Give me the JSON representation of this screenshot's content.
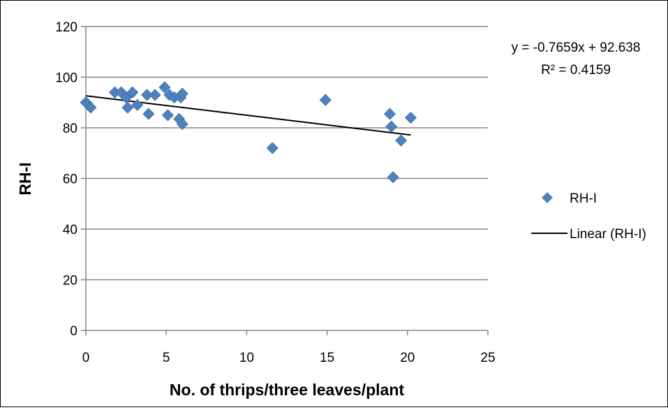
{
  "chart_data": {
    "type": "scatter",
    "xlabel": "No. of thrips/three leaves/plant",
    "ylabel": "RH-I",
    "xlim": [
      0,
      25
    ],
    "ylim": [
      0,
      120
    ],
    "xticks": [
      0,
      5,
      10,
      15,
      20,
      25
    ],
    "yticks": [
      0,
      20,
      40,
      60,
      80,
      100,
      120
    ],
    "grid": "horizontal",
    "legend_position": "right",
    "series": [
      {
        "name": "RH-I",
        "marker": "diamond",
        "color": "#4F81BD",
        "points": [
          {
            "x": 0.0,
            "y": 90
          },
          {
            "x": 0.1,
            "y": 89.5
          },
          {
            "x": 0.3,
            "y": 88
          },
          {
            "x": 1.8,
            "y": 94
          },
          {
            "x": 2.2,
            "y": 94
          },
          {
            "x": 2.5,
            "y": 92
          },
          {
            "x": 2.6,
            "y": 88
          },
          {
            "x": 2.9,
            "y": 94
          },
          {
            "x": 3.2,
            "y": 89
          },
          {
            "x": 3.8,
            "y": 93
          },
          {
            "x": 3.9,
            "y": 85.5
          },
          {
            "x": 4.3,
            "y": 93
          },
          {
            "x": 4.9,
            "y": 96
          },
          {
            "x": 5.1,
            "y": 85
          },
          {
            "x": 5.2,
            "y": 93
          },
          {
            "x": 5.5,
            "y": 92
          },
          {
            "x": 5.8,
            "y": 83.5
          },
          {
            "x": 5.9,
            "y": 92
          },
          {
            "x": 6.0,
            "y": 93.5
          },
          {
            "x": 6.0,
            "y": 81.5
          },
          {
            "x": 11.6,
            "y": 72
          },
          {
            "x": 14.9,
            "y": 91
          },
          {
            "x": 18.9,
            "y": 85.5
          },
          {
            "x": 19.0,
            "y": 80.5
          },
          {
            "x": 19.1,
            "y": 60.5
          },
          {
            "x": 19.6,
            "y": 75
          },
          {
            "x": 20.2,
            "y": 84
          }
        ]
      },
      {
        "name": "Linear (RH-I)",
        "type": "trendline",
        "color": "#000000",
        "slope": -0.7659,
        "intercept": 92.638,
        "x_range": [
          0,
          20.2
        ]
      }
    ],
    "annotations": {
      "equation": "y = -0.7659x + 92.638",
      "r_squared": "R² = 0.4159"
    },
    "legend": {
      "scatter_label": "RH-I",
      "trend_label": "Linear (RH-I)"
    }
  }
}
